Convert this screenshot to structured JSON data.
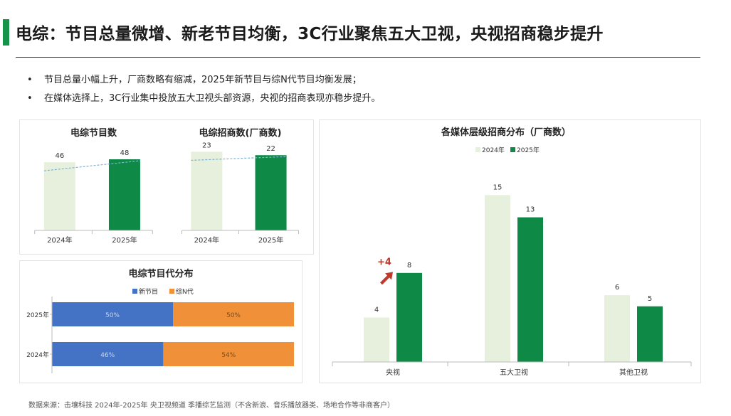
{
  "header": {
    "title": "电综：节目总量微增、新老节目均衡，3C行业聚焦五大卫视，央视招商稳步提升",
    "accent_color": "#16934a"
  },
  "bullets": [
    "节目总量小幅上升，厂商数略有缩减，2025年新节目与综N代节目均衡发展；",
    "在媒体选择上，3C行业集中投放五大卫视头部资源，央视的招商表现亦稳步提升。"
  ],
  "bullet_marker": "•",
  "colors": {
    "y2024": "#e6f0dc",
    "y2025": "#0f8a46",
    "new": "#4472c4",
    "old": "#f0913a",
    "trend": "#7fb3d5",
    "arrow": "#c0392b"
  },
  "chart_data": [
    {
      "id": "programs",
      "type": "bar",
      "title": "电综节目数",
      "categories": [
        "2024年",
        "2025年"
      ],
      "values": [
        46,
        48
      ],
      "ylim": [
        0,
        60
      ],
      "trendline": true
    },
    {
      "id": "advertisers",
      "type": "bar",
      "title": "电综招商数(厂商数)",
      "categories": [
        "2024年",
        "2025年"
      ],
      "values": [
        23,
        22
      ],
      "ylim": [
        0,
        26
      ],
      "trendline": true
    },
    {
      "id": "generation",
      "type": "bar",
      "orientation": "horizontal",
      "stacked": true,
      "title": "电综节目代分布",
      "categories": [
        "2025年",
        "2024年"
      ],
      "legend": [
        "新节目",
        "综N代"
      ],
      "series": [
        {
          "name": "新节目",
          "values": [
            50,
            46
          ],
          "labels": [
            "50%",
            "46%"
          ]
        },
        {
          "name": "综N代",
          "values": [
            50,
            54
          ],
          "labels": [
            "50%",
            "54%"
          ]
        }
      ],
      "xlim": [
        0,
        100
      ]
    },
    {
      "id": "media",
      "type": "bar",
      "title": "各媒体层级招商分布（厂商数）",
      "categories": [
        "央视",
        "五大卫视",
        "其他卫视"
      ],
      "legend": [
        "2024年",
        "2025年"
      ],
      "series": [
        {
          "name": "2024年",
          "values": [
            4,
            15,
            6
          ]
        },
        {
          "name": "2025年",
          "values": [
            8,
            13,
            5
          ]
        }
      ],
      "ylim": [
        0,
        17
      ],
      "annotation": {
        "text": "+4",
        "category": "央视"
      }
    }
  ],
  "source_note": "数据来源：击壤科技 2024年-2025年 央卫视频道 季播综艺监测（不含新浪、音乐播放器类、场地合作等非商客户）"
}
